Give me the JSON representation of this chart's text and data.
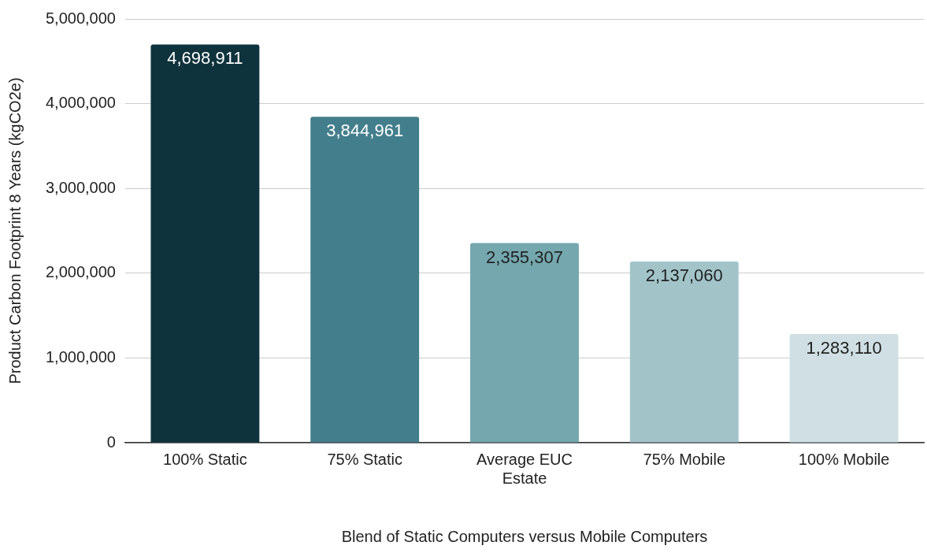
{
  "chart_data": {
    "type": "bar",
    "xlabel": "Blend of Static Computers versus Mobile Computers",
    "ylabel": "Product Carbon Footprint 8 Years (kgCO2e)",
    "categories": [
      "100% Static",
      "75% Static",
      "Average EUC Estate",
      "75% Mobile",
      "100% Mobile"
    ],
    "values": [
      4698911,
      3844961,
      2355307,
      2137060,
      1283110
    ],
    "colors": [
      "#0e333c",
      "#437e8c",
      "#74a7ae",
      "#a2c4c9",
      "#d0dfe3"
    ],
    "ylim": [
      0,
      5000000
    ],
    "value_labels": [
      "4,698,911",
      "3,844,961",
      "2,355,307",
      "2,137,060",
      "1,283,110"
    ],
    "yticks": [
      0,
      {
        "value": 1000000,
        "label": "1,000,000"
      },
      {
        "value": 2000000,
        "label": "2,000,000"
      },
      {
        "value": 3000000,
        "label": "3,000,000"
      },
      {
        "value": 4000000,
        "label": "4,000,000"
      },
      {
        "value": 5000000,
        "label": "5,000,000"
      }
    ],
    "grid": "y",
    "legend": false
  }
}
